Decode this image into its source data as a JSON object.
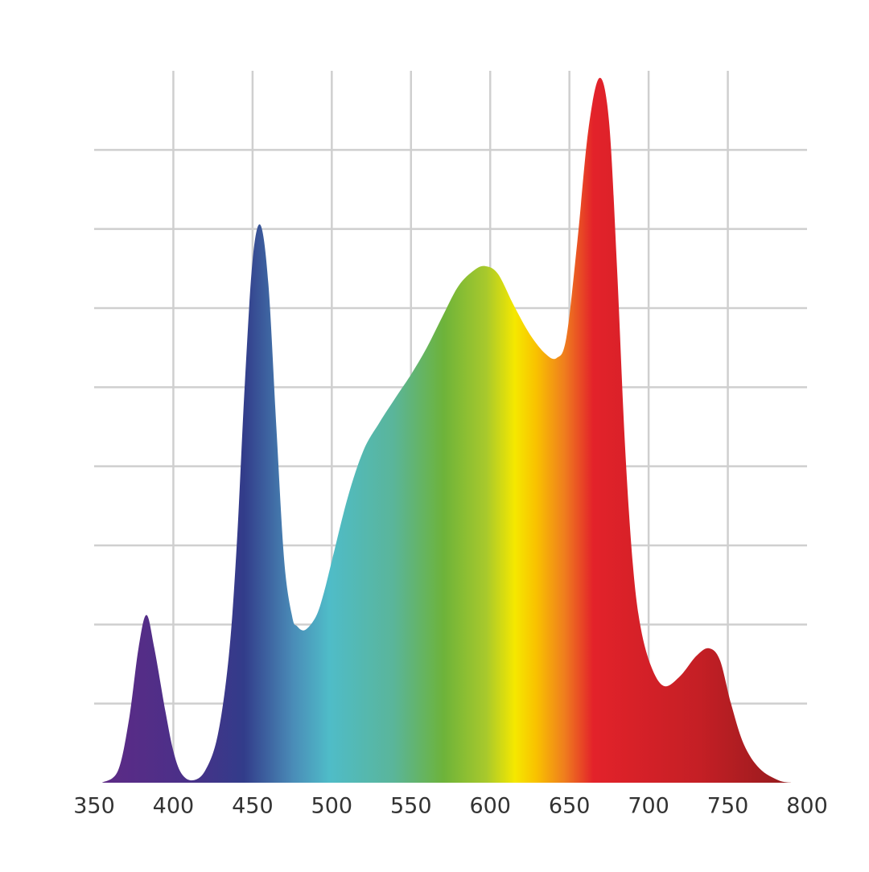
{
  "chart_data": {
    "type": "area",
    "x": [
      355,
      365,
      372,
      378,
      383,
      388,
      395,
      400,
      405,
      412,
      420,
      428,
      435,
      440,
      445,
      450,
      455,
      460,
      465,
      470,
      475,
      478,
      483,
      490,
      495,
      500,
      510,
      520,
      530,
      540,
      550,
      560,
      570,
      580,
      590,
      597,
      605,
      615,
      625,
      635,
      642,
      648,
      655,
      662,
      669,
      675,
      680,
      685,
      690,
      695,
      702,
      710,
      720,
      730,
      738,
      745,
      752,
      760,
      770,
      782,
      790
    ],
    "values": [
      0,
      0.15,
      0.8,
      1.7,
      2.12,
      1.7,
      0.9,
      0.4,
      0.12,
      0.03,
      0.15,
      0.6,
      1.6,
      3.0,
      5.0,
      6.6,
      7.05,
      6.3,
      4.5,
      2.8,
      2.1,
      1.98,
      1.93,
      2.1,
      2.4,
      2.8,
      3.6,
      4.2,
      4.55,
      4.86,
      5.16,
      5.5,
      5.9,
      6.28,
      6.48,
      6.53,
      6.43,
      6.03,
      5.67,
      5.42,
      5.37,
      5.62,
      6.84,
      8.26,
      8.91,
      8.36,
      6.53,
      4.3,
      2.77,
      1.96,
      1.45,
      1.22,
      1.35,
      1.6,
      1.7,
      1.55,
      1.0,
      0.49,
      0.18,
      0.03,
      0
    ],
    "xlim": [
      350,
      800
    ],
    "xticks": [
      350,
      400,
      450,
      500,
      550,
      600,
      650,
      700,
      750,
      800
    ],
    "ylim": [
      0,
      9
    ],
    "yticks": [
      1,
      2,
      3,
      4,
      5,
      6,
      7,
      8
    ],
    "grid": true,
    "grid_color": "#cfcfcf"
  }
}
